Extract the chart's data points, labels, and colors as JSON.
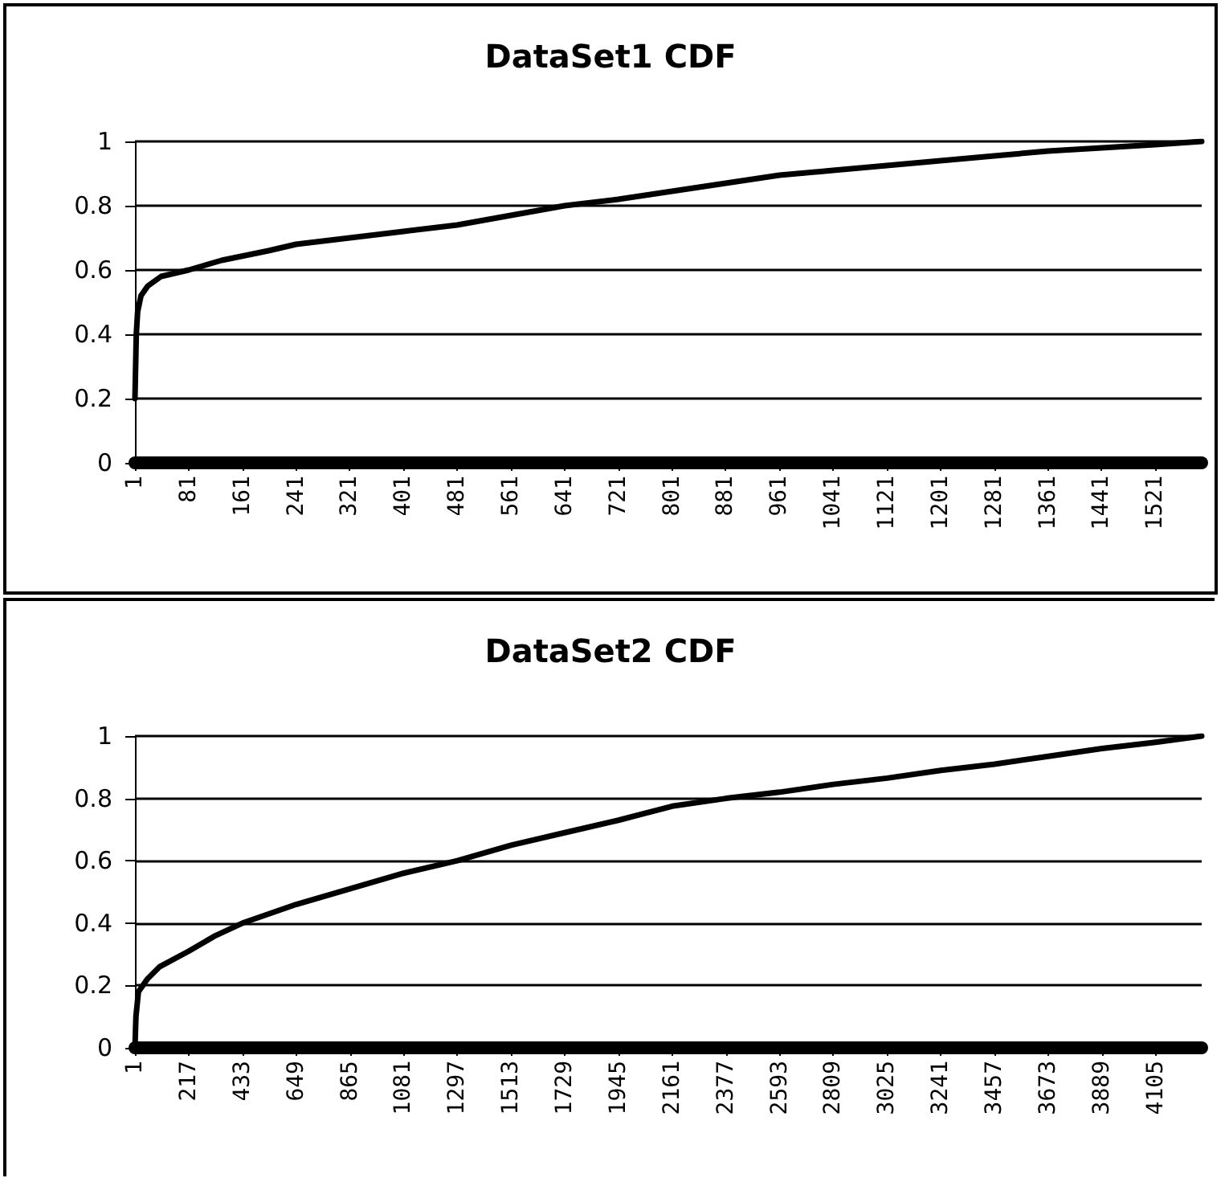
{
  "chart_data": [
    {
      "type": "line",
      "title": "DataSet1 CDF",
      "x": [
        1,
        3,
        5,
        10,
        20,
        40,
        81,
        130,
        200,
        241,
        321,
        401,
        481,
        561,
        641,
        721,
        801,
        881,
        961,
        1041,
        1121,
        1201,
        1281,
        1361,
        1441,
        1521,
        1590
      ],
      "series": [
        {
          "color": "#000000",
          "values": [
            0.2,
            0.4,
            0.47,
            0.52,
            0.55,
            0.58,
            0.6,
            0.63,
            0.66,
            0.68,
            0.7,
            0.72,
            0.74,
            0.77,
            0.8,
            0.82,
            0.845,
            0.87,
            0.895,
            0.91,
            0.925,
            0.94,
            0.955,
            0.97,
            0.98,
            0.99,
            1.0
          ]
        }
      ],
      "xlim": [
        1,
        1590
      ],
      "xticks": [
        1,
        81,
        161,
        241,
        321,
        401,
        481,
        561,
        641,
        721,
        801,
        881,
        961,
        1041,
        1121,
        1201,
        1281,
        1361,
        1441,
        1521
      ],
      "ylim": [
        0,
        1
      ],
      "yticks": [
        0,
        0.2,
        0.4,
        0.6,
        0.8,
        1
      ],
      "grid": "y",
      "marker": "none",
      "line_style": "solid"
    },
    {
      "type": "line",
      "title": "DataSet2 CDF",
      "x": [
        1,
        5,
        15,
        50,
        100,
        217,
        325,
        433,
        649,
        865,
        1081,
        1297,
        1513,
        1729,
        1945,
        2161,
        2377,
        2593,
        2809,
        3025,
        3241,
        3457,
        3673,
        3889,
        4105,
        4290
      ],
      "series": [
        {
          "color": "#000000",
          "values": [
            0,
            0.1,
            0.18,
            0.22,
            0.26,
            0.31,
            0.36,
            0.4,
            0.46,
            0.51,
            0.56,
            0.6,
            0.65,
            0.69,
            0.73,
            0.775,
            0.8,
            0.82,
            0.845,
            0.865,
            0.89,
            0.91,
            0.935,
            0.96,
            0.98,
            1.0
          ]
        }
      ],
      "xlim": [
        1,
        4290
      ],
      "xticks": [
        1,
        217,
        433,
        649,
        865,
        1081,
        1297,
        1513,
        1729,
        1945,
        2161,
        2377,
        2593,
        2809,
        3025,
        3241,
        3457,
        3673,
        3889,
        4105
      ],
      "ylim": [
        0,
        1
      ],
      "yticks": [
        0,
        0.2,
        0.4,
        0.6,
        0.8,
        1
      ],
      "grid": "y",
      "marker": "none",
      "line_style": "solid"
    }
  ]
}
